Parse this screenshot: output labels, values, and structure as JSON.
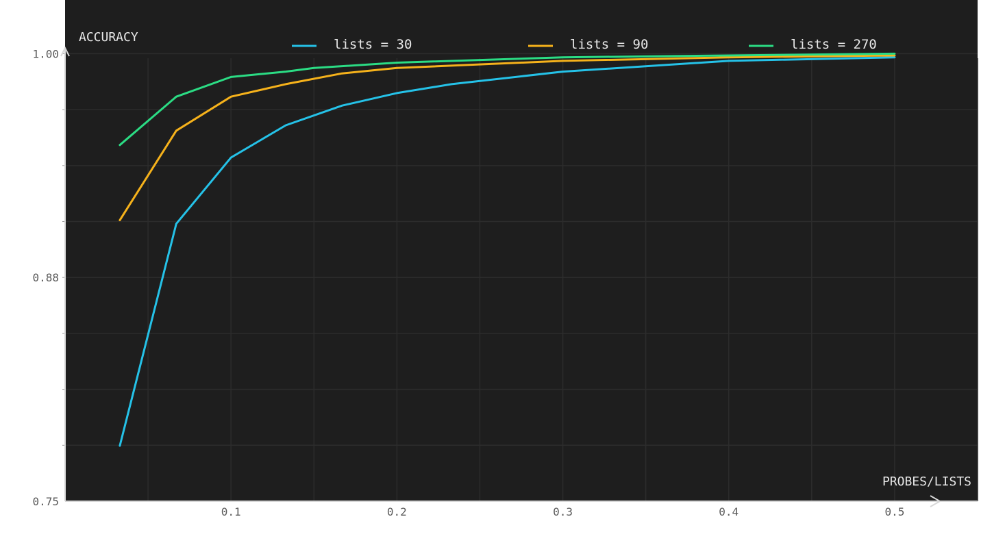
{
  "chart_data": {
    "type": "line",
    "title": "",
    "xlabel": "PROBES/LISTS",
    "ylabel": "ACCURACY",
    "xlim": [
      0,
      0.55
    ],
    "ylim": [
      0.75,
      1.03
    ],
    "x_ticks": [
      "0.1",
      "0.2",
      "0.3",
      "0.4",
      "0.5"
    ],
    "x_tick_values": [
      0.1,
      0.2,
      0.3,
      0.4,
      0.5
    ],
    "y_ticks": [
      "0.75",
      "0.88",
      "1.00"
    ],
    "y_tick_values": [
      0.75,
      0.875,
      1.0
    ],
    "grid": true,
    "legend_position": "top",
    "series": [
      {
        "name": "lists = 30",
        "color": "#25c2e8",
        "x": [
          0.033,
          0.067,
          0.1,
          0.133,
          0.167,
          0.2,
          0.233,
          0.3,
          0.4,
          0.5
        ],
        "y": [
          0.781,
          0.905,
          0.942,
          0.96,
          0.971,
          0.978,
          0.983,
          0.99,
          0.996,
          0.998
        ]
      },
      {
        "name": "lists = 90",
        "color": "#f6b21b",
        "x": [
          0.033,
          0.067,
          0.1,
          0.133,
          0.167,
          0.2,
          0.3,
          0.4,
          0.5
        ],
        "y": [
          0.907,
          0.957,
          0.976,
          0.983,
          0.989,
          0.992,
          0.996,
          0.998,
          0.999
        ]
      },
      {
        "name": "lists = 270",
        "color": "#2bdc84",
        "x": [
          0.033,
          0.067,
          0.1,
          0.133,
          0.15,
          0.2,
          0.3,
          0.4,
          0.5
        ],
        "y": [
          0.949,
          0.976,
          0.987,
          0.99,
          0.992,
          0.995,
          0.998,
          0.999,
          1.0
        ]
      }
    ]
  }
}
